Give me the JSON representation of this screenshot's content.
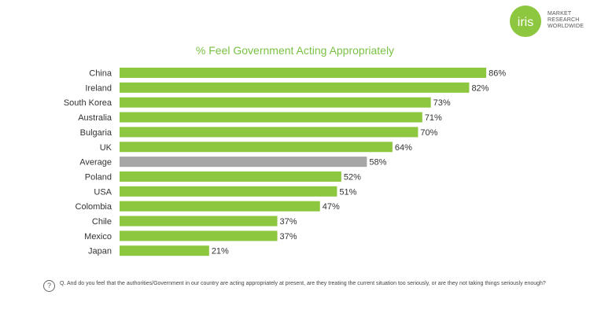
{
  "logo": {
    "wordmark": "iris",
    "lines": [
      "MARKET",
      "RESEARCH",
      "WORLDWIDE"
    ]
  },
  "question": {
    "icon": "question-circle-icon",
    "text": "Q. And do you feel that the authorities/Government in our country are acting appropriately at present, are they treating the current situation too seriously, or are they not taking things seriously enough?"
  },
  "colors": {
    "bar": "#8dc63f",
    "highlight_bar": "#a6a6a6",
    "title": "#7ac143"
  },
  "chart_data": {
    "type": "bar",
    "orientation": "horizontal",
    "title": "% Feel Government Acting Appropriately",
    "xlabel": "",
    "ylabel": "",
    "xlim": [
      0,
      100
    ],
    "grid": false,
    "legend": "none",
    "highlight_category": "Average",
    "categories": [
      "China",
      "Ireland",
      "South Korea",
      "Australia",
      "Bulgaria",
      "UK",
      "Average",
      "Poland",
      "USA",
      "Colombia",
      "Chile",
      "Mexico",
      "Japan"
    ],
    "values": [
      86,
      82,
      73,
      71,
      70,
      64,
      58,
      52,
      51,
      47,
      37,
      37,
      21
    ],
    "value_labels": [
      "86%",
      "82%",
      "73%",
      "71%",
      "70%",
      "64%",
      "58%",
      "52%",
      "51%",
      "47%",
      "37%",
      "37%",
      "21%"
    ]
  }
}
